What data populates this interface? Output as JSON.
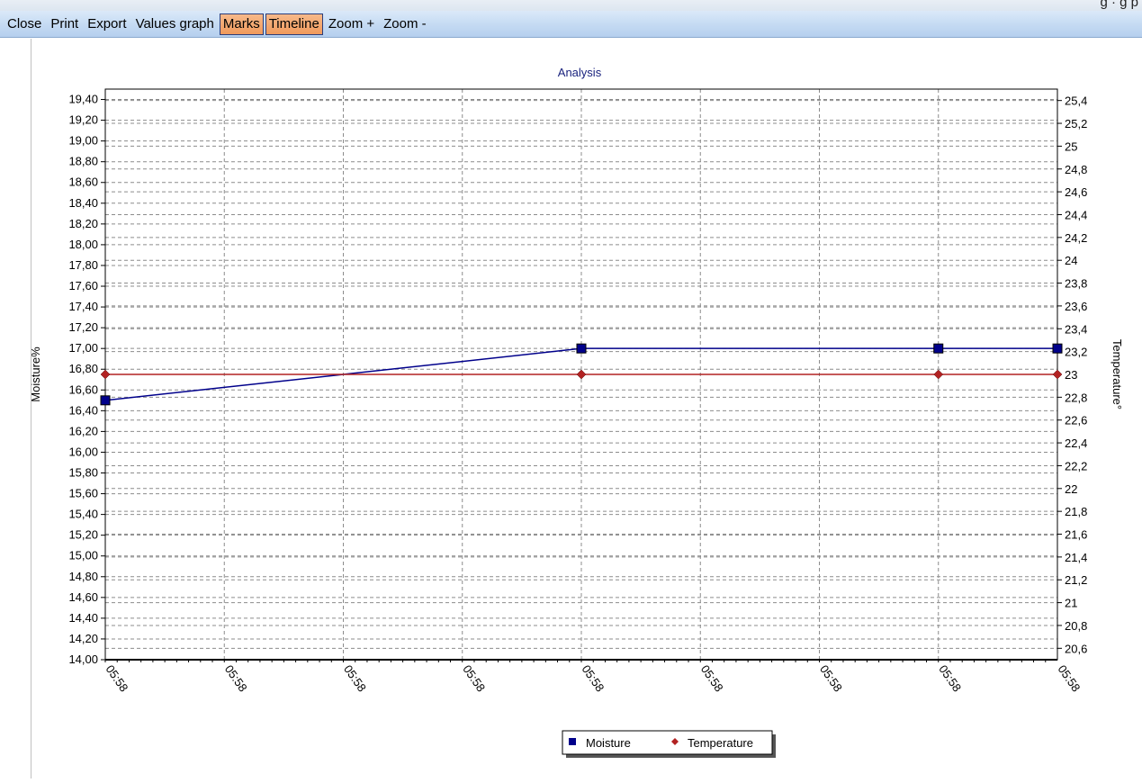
{
  "window": {
    "title_fragment": "g · g  p"
  },
  "toolbar": {
    "items": [
      {
        "label": "Close",
        "active": false
      },
      {
        "label": "Print",
        "active": false
      },
      {
        "label": "Export",
        "active": false
      },
      {
        "label": "Values graph",
        "active": false
      },
      {
        "label": "Marks",
        "active": true
      },
      {
        "label": "Timeline",
        "active": true
      },
      {
        "label": "Zoom +",
        "active": false
      },
      {
        "label": "Zoom -",
        "active": false
      }
    ]
  },
  "colors": {
    "moisture": "#00008b",
    "temperature": "#b22222",
    "title": "#1a237e",
    "grid": "#8c8c8c"
  },
  "chart_data": {
    "type": "line",
    "title": "Analysis",
    "ylabel_left": "Moisture%",
    "ylabel_right": "Temperature°",
    "x_tick_labels": [
      "05:58",
      "05:58",
      "05:58",
      "05:58",
      "05:58",
      "05:58",
      "05:58",
      "05:58",
      "05:58"
    ],
    "y_left": {
      "min": 14.0,
      "max": 19.5,
      "tick_labels": [
        "14,00",
        "14,20",
        "14,40",
        "14,60",
        "14,80",
        "15,00",
        "15,20",
        "15,40",
        "15,60",
        "15,80",
        "16,00",
        "16,20",
        "16,40",
        "16,60",
        "16,80",
        "17,00",
        "17,20",
        "17,40",
        "17,60",
        "17,80",
        "18,00",
        "18,20",
        "18,40",
        "18,60",
        "18,80",
        "19,00",
        "19,20",
        "19,40"
      ],
      "tick_values": [
        14.0,
        14.2,
        14.4,
        14.6,
        14.8,
        15.0,
        15.2,
        15.4,
        15.6,
        15.8,
        16.0,
        16.2,
        16.4,
        16.6,
        16.8,
        17.0,
        17.2,
        17.4,
        17.6,
        17.8,
        18.0,
        18.2,
        18.4,
        18.6,
        18.8,
        19.0,
        19.2,
        19.4
      ]
    },
    "y_right": {
      "min": 20.5,
      "max": 25.5,
      "tick_labels": [
        "20,6",
        "20,8",
        "21",
        "21,2",
        "21,4",
        "21,6",
        "21,8",
        "22",
        "22,2",
        "22,4",
        "22,6",
        "22,8",
        "23",
        "23,2",
        "23,4",
        "23,6",
        "23,8",
        "24",
        "24,2",
        "24,4",
        "24,6",
        "24,8",
        "25",
        "25,2",
        "25,4"
      ],
      "tick_values": [
        20.6,
        20.8,
        21.0,
        21.2,
        21.4,
        21.6,
        21.8,
        22.0,
        22.2,
        22.4,
        22.6,
        22.8,
        23.0,
        23.2,
        23.4,
        23.6,
        23.8,
        24.0,
        24.2,
        24.4,
        24.6,
        24.8,
        25.0,
        25.2,
        25.4
      ]
    },
    "series": [
      {
        "name": "Moisture",
        "axis": "left",
        "marker": "square",
        "x_index": [
          0,
          4,
          7,
          8
        ],
        "values": [
          16.5,
          17.0,
          17.0,
          17.0
        ]
      },
      {
        "name": "Temperature",
        "axis": "right",
        "marker": "diamond",
        "x_index": [
          0,
          4,
          7,
          8
        ],
        "values": [
          23.0,
          23.0,
          23.0,
          23.0
        ]
      }
    ],
    "legend": {
      "position": "bottom-center"
    },
    "grid": true
  }
}
